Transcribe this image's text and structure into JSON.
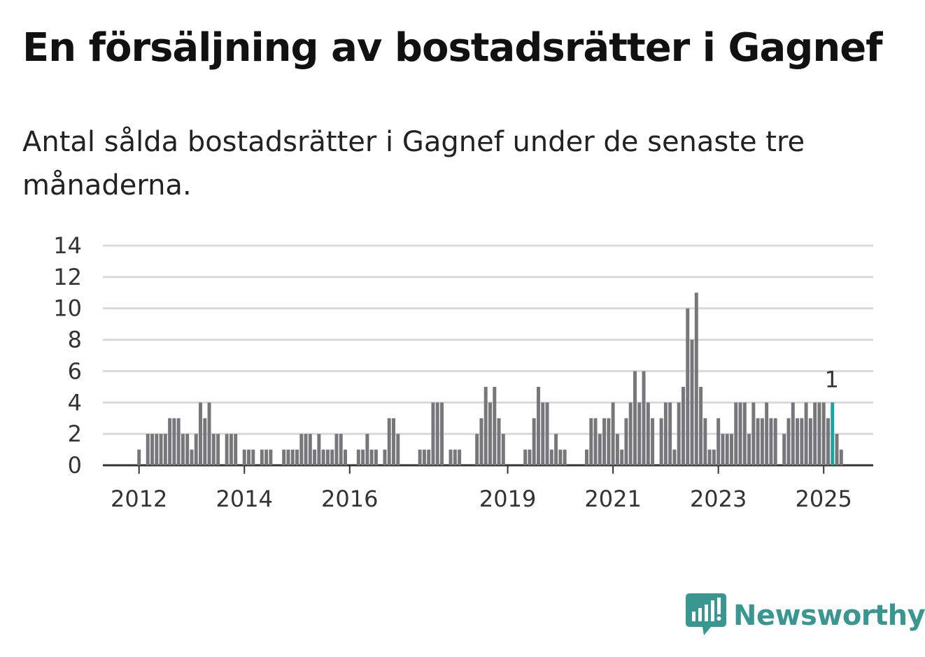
{
  "title": "En försäljning av bostadsrätter i Gagnef",
  "subtitle": "Antal sålda bostadsrätter i Gagnef under de senaste tre månaderna.",
  "brand": {
    "name": "Newsworthy",
    "color": "#3a9690"
  },
  "colors": {
    "bar": "#77767b",
    "highlight": "#1aa6a0",
    "grid": "#d9d9d9",
    "axis": "#333333"
  },
  "chart_data": {
    "type": "bar",
    "title": "",
    "xlabel": "",
    "ylabel": "",
    "ylim": [
      0,
      14
    ],
    "yticks": [
      0,
      2,
      4,
      6,
      8,
      10,
      12,
      14
    ],
    "x_start": "2011-04",
    "x_end": "2025-03",
    "xtick_labels": [
      "2012",
      "2014",
      "2016",
      "2019",
      "2021",
      "2023",
      "2025"
    ],
    "xtick_dates": [
      "2012-01",
      "2014-01",
      "2016-01",
      "2019-01",
      "2021-01",
      "2023-01",
      "2025-01"
    ],
    "grid": true,
    "highlight_date": "2025-03",
    "highlight_label": "1",
    "values": [
      0,
      0,
      0,
      0,
      0,
      0,
      0,
      0,
      0,
      1,
      0,
      2,
      2,
      2,
      2,
      2,
      3,
      3,
      3,
      2,
      2,
      1,
      2,
      4,
      3,
      4,
      2,
      2,
      0,
      2,
      2,
      2,
      0,
      1,
      1,
      1,
      0,
      1,
      1,
      1,
      0,
      0,
      1,
      1,
      1,
      1,
      2,
      2,
      2,
      1,
      2,
      1,
      1,
      1,
      2,
      2,
      1,
      0,
      0,
      1,
      1,
      2,
      1,
      1,
      0,
      1,
      3,
      3,
      2,
      0,
      0,
      0,
      0,
      1,
      1,
      1,
      4,
      4,
      4,
      0,
      1,
      1,
      1,
      0,
      0,
      0,
      2,
      3,
      5,
      4,
      5,
      3,
      2,
      0,
      0,
      0,
      0,
      1,
      1,
      3,
      5,
      4,
      4,
      1,
      2,
      1,
      1,
      0,
      0,
      0,
      0,
      1,
      3,
      3,
      2,
      3,
      3,
      4,
      2,
      1,
      3,
      4,
      6,
      4,
      6,
      4,
      3,
      0,
      3,
      4,
      4,
      1,
      4,
      5,
      10,
      8,
      11,
      5,
      3,
      1,
      1,
      3,
      2,
      2,
      2,
      4,
      4,
      4,
      2,
      4,
      3,
      3,
      4,
      3,
      3,
      0,
      2,
      3,
      4,
      3,
      3,
      4,
      3,
      4,
      4,
      4,
      3,
      4,
      2,
      1
    ]
  }
}
